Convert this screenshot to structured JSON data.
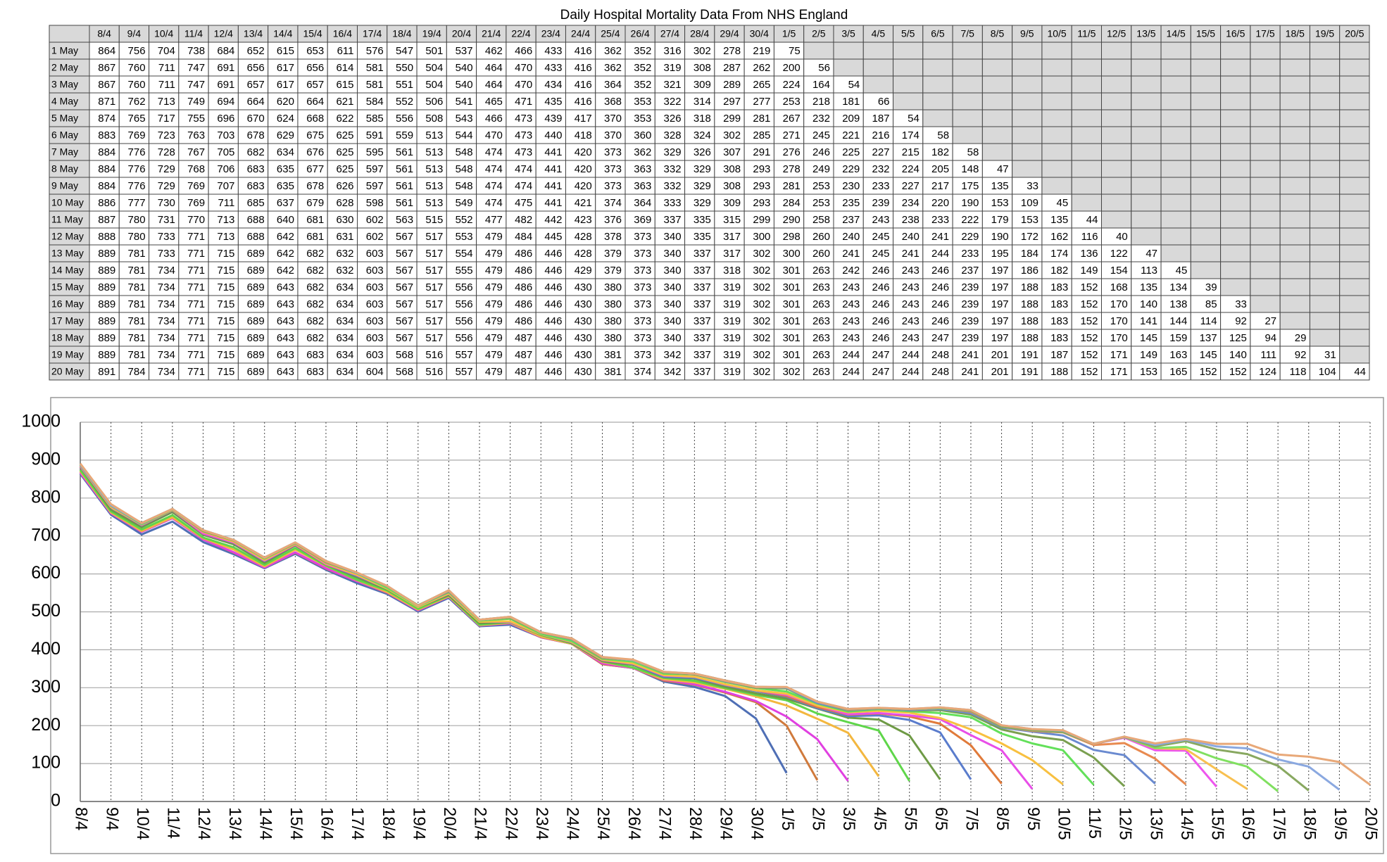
{
  "chart_data": {
    "type": "line",
    "title": "Daily Hospital Mortality Data From NHS England",
    "categories": [
      "8/4",
      "9/4",
      "10/4",
      "11/4",
      "12/4",
      "13/4",
      "14/4",
      "15/4",
      "16/4",
      "17/4",
      "18/4",
      "19/4",
      "20/4",
      "21/4",
      "22/4",
      "23/4",
      "24/4",
      "25/4",
      "26/4",
      "27/4",
      "28/4",
      "29/4",
      "30/4",
      "1/5",
      "2/5",
      "3/5",
      "4/5",
      "5/5",
      "6/5",
      "7/5",
      "8/5",
      "9/5",
      "10/5",
      "11/5",
      "12/5",
      "13/5",
      "14/5",
      "15/5",
      "16/5",
      "17/5",
      "18/5",
      "19/5",
      "20/5"
    ],
    "series": [
      {
        "name": "1 May",
        "color": "#4f6fb5",
        "values": [
          864,
          756,
          704,
          738,
          684,
          652,
          615,
          653,
          611,
          576,
          547,
          501,
          537,
          462,
          466,
          433,
          416,
          362,
          352,
          316,
          302,
          278,
          219,
          75,
          null,
          null,
          null,
          null,
          null,
          null,
          null,
          null,
          null,
          null,
          null,
          null,
          null,
          null,
          null,
          null,
          null,
          null,
          null
        ]
      },
      {
        "name": "2 May",
        "color": "#d07a3c",
        "values": [
          867,
          760,
          711,
          747,
          691,
          656,
          617,
          656,
          614,
          581,
          550,
          504,
          540,
          464,
          470,
          433,
          416,
          362,
          352,
          319,
          308,
          287,
          262,
          200,
          56,
          null,
          null,
          null,
          null,
          null,
          null,
          null,
          null,
          null,
          null,
          null,
          null,
          null,
          null,
          null,
          null,
          null,
          null
        ]
      },
      {
        "name": "3 May",
        "color": "#e040e0",
        "values": [
          867,
          760,
          711,
          747,
          691,
          657,
          617,
          657,
          615,
          581,
          551,
          504,
          540,
          464,
          470,
          434,
          416,
          364,
          352,
          321,
          309,
          289,
          265,
          224,
          164,
          54,
          null,
          null,
          null,
          null,
          null,
          null,
          null,
          null,
          null,
          null,
          null,
          null,
          null,
          null,
          null,
          null,
          null
        ]
      },
      {
        "name": "4 May",
        "color": "#f3b73f",
        "values": [
          871,
          762,
          713,
          749,
          694,
          664,
          620,
          664,
          621,
          584,
          552,
          506,
          541,
          465,
          471,
          435,
          416,
          368,
          353,
          322,
          314,
          297,
          277,
          253,
          218,
          181,
          66,
          null,
          null,
          null,
          null,
          null,
          null,
          null,
          null,
          null,
          null,
          null,
          null,
          null,
          null,
          null,
          null
        ]
      },
      {
        "name": "5 May",
        "color": "#5fd64a",
        "values": [
          874,
          765,
          717,
          755,
          696,
          670,
          624,
          668,
          622,
          585,
          556,
          508,
          543,
          466,
          473,
          439,
          417,
          370,
          353,
          326,
          318,
          299,
          281,
          267,
          232,
          209,
          187,
          54,
          null,
          null,
          null,
          null,
          null,
          null,
          null,
          null,
          null,
          null,
          null,
          null,
          null,
          null,
          null
        ]
      },
      {
        "name": "6 May",
        "color": "#6e9a45",
        "values": [
          883,
          769,
          723,
          763,
          703,
          678,
          629,
          675,
          625,
          591,
          559,
          513,
          544,
          470,
          473,
          440,
          418,
          370,
          360,
          328,
          324,
          302,
          285,
          271,
          245,
          221,
          216,
          174,
          58,
          null,
          null,
          null,
          null,
          null,
          null,
          null,
          null,
          null,
          null,
          null,
          null,
          null,
          null
        ]
      },
      {
        "name": "7 May",
        "color": "#5a7ccc",
        "values": [
          884,
          776,
          728,
          767,
          705,
          682,
          634,
          676,
          625,
          595,
          561,
          513,
          548,
          474,
          473,
          441,
          420,
          373,
          362,
          329,
          326,
          307,
          291,
          276,
          246,
          225,
          227,
          215,
          182,
          58,
          null,
          null,
          null,
          null,
          null,
          null,
          null,
          null,
          null,
          null,
          null,
          null,
          null
        ]
      },
      {
        "name": "8 May",
        "color": "#e07a3a",
        "values": [
          884,
          776,
          729,
          768,
          706,
          683,
          635,
          677,
          625,
          597,
          561,
          513,
          548,
          474,
          474,
          441,
          420,
          373,
          363,
          332,
          329,
          308,
          293,
          278,
          249,
          229,
          232,
          224,
          205,
          148,
          47,
          null,
          null,
          null,
          null,
          null,
          null,
          null,
          null,
          null,
          null,
          null,
          null
        ]
      },
      {
        "name": "9 May",
        "color": "#e84ee8",
        "values": [
          884,
          776,
          729,
          769,
          707,
          683,
          635,
          678,
          626,
          597,
          561,
          513,
          548,
          474,
          474,
          441,
          420,
          373,
          363,
          332,
          329,
          308,
          293,
          281,
          253,
          230,
          233,
          227,
          217,
          175,
          135,
          33,
          null,
          null,
          null,
          null,
          null,
          null,
          null,
          null,
          null,
          null,
          null
        ]
      },
      {
        "name": "10 May",
        "color": "#f8c040",
        "values": [
          886,
          777,
          730,
          769,
          711,
          685,
          637,
          679,
          628,
          598,
          561,
          513,
          549,
          474,
          475,
          441,
          421,
          374,
          364,
          333,
          329,
          309,
          293,
          284,
          253,
          235,
          239,
          234,
          220,
          190,
          153,
          109,
          45,
          null,
          null,
          null,
          null,
          null,
          null,
          null,
          null,
          null,
          null
        ]
      },
      {
        "name": "11 May",
        "color": "#63e05a",
        "values": [
          887,
          780,
          731,
          770,
          713,
          688,
          640,
          681,
          630,
          602,
          563,
          515,
          552,
          477,
          482,
          442,
          423,
          376,
          369,
          337,
          335,
          315,
          299,
          290,
          258,
          237,
          243,
          238,
          233,
          222,
          179,
          153,
          135,
          44,
          null,
          null,
          null,
          null,
          null,
          null,
          null,
          null,
          null
        ]
      },
      {
        "name": "12 May",
        "color": "#7aa050",
        "values": [
          888,
          780,
          733,
          771,
          713,
          688,
          642,
          681,
          631,
          602,
          567,
          517,
          553,
          479,
          484,
          445,
          428,
          378,
          373,
          340,
          335,
          317,
          300,
          298,
          260,
          240,
          245,
          240,
          241,
          229,
          190,
          172,
          162,
          116,
          40,
          null,
          null,
          null,
          null,
          null,
          null,
          null,
          null
        ]
      },
      {
        "name": "13 May",
        "color": "#6a8ad0",
        "values": [
          889,
          781,
          733,
          771,
          715,
          689,
          642,
          682,
          632,
          603,
          567,
          517,
          554,
          479,
          486,
          446,
          428,
          379,
          373,
          340,
          337,
          317,
          302,
          300,
          260,
          241,
          245,
          241,
          244,
          233,
          195,
          184,
          174,
          136,
          122,
          47,
          null,
          null,
          null,
          null,
          null,
          null,
          null
        ]
      },
      {
        "name": "14 May",
        "color": "#e88a50",
        "values": [
          889,
          781,
          734,
          771,
          715,
          689,
          642,
          682,
          632,
          603,
          567,
          517,
          555,
          479,
          486,
          446,
          429,
          379,
          373,
          340,
          337,
          318,
          302,
          301,
          263,
          242,
          246,
          243,
          246,
          237,
          197,
          186,
          182,
          149,
          154,
          113,
          45,
          null,
          null,
          null,
          null,
          null,
          null
        ]
      },
      {
        "name": "15 May",
        "color": "#ee55ee",
        "values": [
          889,
          781,
          734,
          771,
          715,
          689,
          643,
          682,
          634,
          603,
          567,
          517,
          556,
          479,
          486,
          446,
          430,
          380,
          373,
          340,
          337,
          319,
          302,
          301,
          263,
          243,
          246,
          243,
          246,
          239,
          197,
          188,
          183,
          152,
          168,
          135,
          134,
          39,
          null,
          null,
          null,
          null,
          null
        ]
      },
      {
        "name": "16 May",
        "color": "#f8c050",
        "values": [
          889,
          781,
          734,
          771,
          715,
          689,
          643,
          682,
          634,
          603,
          567,
          517,
          556,
          479,
          486,
          446,
          430,
          380,
          373,
          340,
          337,
          319,
          302,
          301,
          263,
          243,
          246,
          243,
          246,
          239,
          197,
          188,
          183,
          152,
          170,
          140,
          138,
          85,
          33,
          null,
          null,
          null,
          null
        ]
      },
      {
        "name": "17 May",
        "color": "#80e060",
        "values": [
          889,
          781,
          734,
          771,
          715,
          689,
          643,
          682,
          634,
          603,
          567,
          517,
          556,
          479,
          486,
          446,
          430,
          380,
          373,
          340,
          337,
          319,
          302,
          301,
          263,
          243,
          246,
          243,
          246,
          239,
          197,
          188,
          183,
          152,
          170,
          141,
          144,
          114,
          92,
          27,
          null,
          null,
          null
        ]
      },
      {
        "name": "18 May",
        "color": "#88a860",
        "values": [
          889,
          781,
          734,
          771,
          715,
          689,
          643,
          682,
          634,
          603,
          567,
          517,
          556,
          479,
          487,
          446,
          430,
          380,
          373,
          340,
          337,
          319,
          302,
          301,
          263,
          243,
          246,
          243,
          247,
          239,
          197,
          188,
          183,
          152,
          170,
          145,
          159,
          137,
          125,
          94,
          29,
          null,
          null
        ]
      },
      {
        "name": "19 May",
        "color": "#8aa8e0",
        "values": [
          889,
          781,
          734,
          771,
          715,
          689,
          643,
          683,
          634,
          603,
          568,
          516,
          557,
          479,
          487,
          446,
          430,
          381,
          373,
          342,
          337,
          319,
          302,
          301,
          263,
          244,
          247,
          244,
          248,
          241,
          201,
          191,
          187,
          152,
          171,
          149,
          163,
          145,
          140,
          111,
          92,
          31,
          null
        ]
      },
      {
        "name": "20 May",
        "color": "#e8a878",
        "values": [
          891,
          784,
          734,
          771,
          715,
          689,
          643,
          683,
          634,
          604,
          568,
          516,
          557,
          479,
          487,
          446,
          430,
          381,
          374,
          342,
          337,
          319,
          302,
          302,
          263,
          244,
          247,
          244,
          248,
          241,
          201,
          191,
          188,
          152,
          171,
          153,
          165,
          152,
          152,
          124,
          118,
          104,
          44
        ]
      }
    ],
    "ylim": [
      0,
      1000
    ],
    "yticks": [
      0,
      100,
      200,
      300,
      400,
      500,
      600,
      700,
      800,
      900,
      1000
    ],
    "grid": true
  }
}
